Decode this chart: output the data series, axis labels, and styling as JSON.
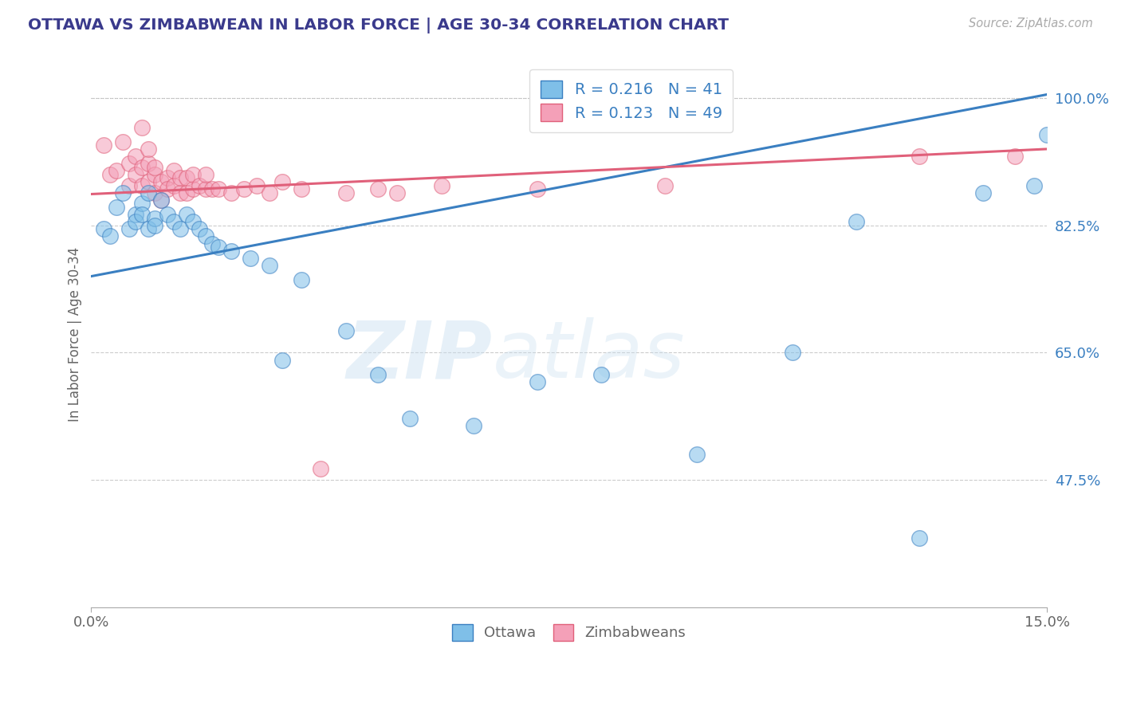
{
  "title": "OTTAWA VS ZIMBABWEAN IN LABOR FORCE | AGE 30-34 CORRELATION CHART",
  "source": "Source: ZipAtlas.com",
  "ylabel": "In Labor Force | Age 30-34",
  "xlim": [
    0.0,
    0.15
  ],
  "ylim": [
    0.3,
    1.05
  ],
  "yticks": [
    0.475,
    0.65,
    0.825,
    1.0
  ],
  "ytick_labels": [
    "47.5%",
    "65.0%",
    "82.5%",
    "100.0%"
  ],
  "xticks": [
    0.0,
    0.15
  ],
  "xtick_labels": [
    "0.0%",
    "15.0%"
  ],
  "blue_R": 0.216,
  "blue_N": 41,
  "pink_R": 0.123,
  "pink_N": 49,
  "blue_color": "#7fbfe8",
  "pink_color": "#f4a0b8",
  "blue_line_color": "#3a7fc1",
  "pink_line_color": "#e0607a",
  "legend_label_blue": "Ottawa",
  "legend_label_pink": "Zimbabweans",
  "title_color": "#3a3a8c",
  "axis_label_color": "#666666",
  "tick_color": "#666666",
  "watermark_zip": "ZIP",
  "watermark_atlas": "atlas",
  "blue_trend_y0": 0.755,
  "blue_trend_y1": 1.005,
  "pink_trend_y0": 0.868,
  "pink_trend_y1": 0.93,
  "blue_scatter_x": [
    0.002,
    0.003,
    0.004,
    0.005,
    0.006,
    0.007,
    0.007,
    0.008,
    0.008,
    0.009,
    0.009,
    0.01,
    0.01,
    0.011,
    0.012,
    0.013,
    0.014,
    0.015,
    0.016,
    0.017,
    0.018,
    0.019,
    0.02,
    0.022,
    0.025,
    0.028,
    0.03,
    0.033,
    0.04,
    0.045,
    0.05,
    0.06,
    0.07,
    0.08,
    0.095,
    0.11,
    0.12,
    0.13,
    0.14,
    0.148,
    0.15
  ],
  "blue_scatter_y": [
    0.82,
    0.81,
    0.85,
    0.87,
    0.82,
    0.84,
    0.83,
    0.855,
    0.84,
    0.87,
    0.82,
    0.835,
    0.825,
    0.86,
    0.84,
    0.83,
    0.82,
    0.84,
    0.83,
    0.82,
    0.81,
    0.8,
    0.795,
    0.79,
    0.78,
    0.77,
    0.64,
    0.75,
    0.68,
    0.62,
    0.56,
    0.55,
    0.61,
    0.62,
    0.51,
    0.65,
    0.83,
    0.395,
    0.87,
    0.88,
    0.95
  ],
  "pink_scatter_x": [
    0.002,
    0.003,
    0.004,
    0.005,
    0.006,
    0.006,
    0.007,
    0.007,
    0.008,
    0.008,
    0.008,
    0.009,
    0.009,
    0.009,
    0.01,
    0.01,
    0.01,
    0.011,
    0.011,
    0.012,
    0.012,
    0.013,
    0.013,
    0.014,
    0.014,
    0.015,
    0.015,
    0.016,
    0.016,
    0.017,
    0.018,
    0.018,
    0.019,
    0.02,
    0.022,
    0.024,
    0.026,
    0.028,
    0.03,
    0.033,
    0.036,
    0.04,
    0.045,
    0.048,
    0.055,
    0.07,
    0.09,
    0.13,
    0.145
  ],
  "pink_scatter_y": [
    0.935,
    0.895,
    0.9,
    0.94,
    0.91,
    0.88,
    0.895,
    0.92,
    0.905,
    0.88,
    0.96,
    0.885,
    0.91,
    0.93,
    0.895,
    0.87,
    0.905,
    0.885,
    0.86,
    0.89,
    0.875,
    0.88,
    0.9,
    0.87,
    0.89,
    0.89,
    0.87,
    0.875,
    0.895,
    0.88,
    0.875,
    0.895,
    0.875,
    0.875,
    0.87,
    0.875,
    0.88,
    0.87,
    0.885,
    0.875,
    0.49,
    0.87,
    0.875,
    0.87,
    0.88,
    0.875,
    0.88,
    0.92,
    0.92
  ]
}
